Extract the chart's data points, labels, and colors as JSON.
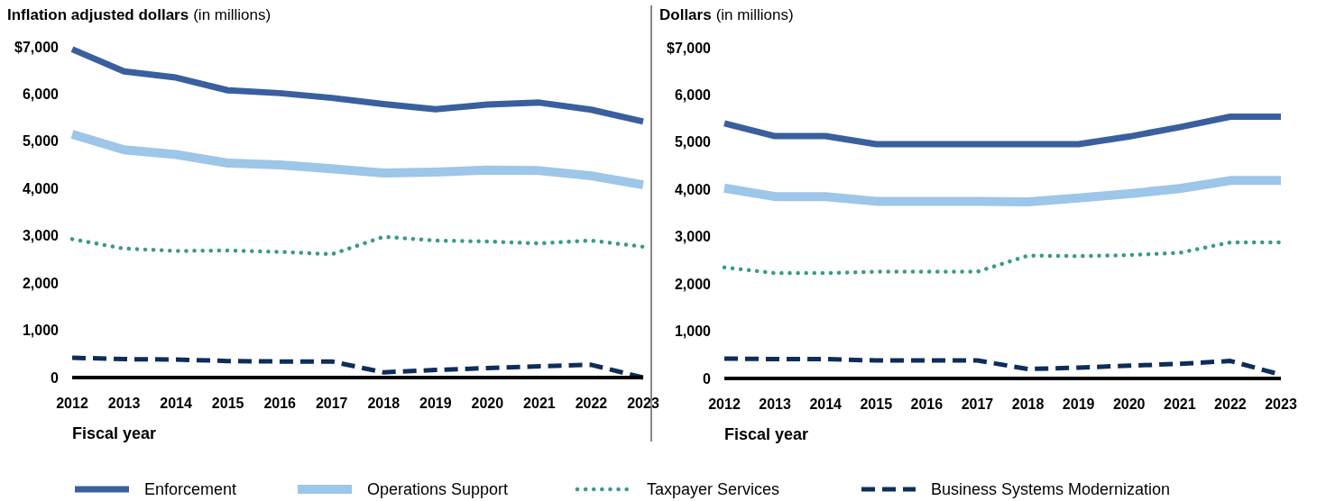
{
  "chart_data": [
    {
      "type": "line",
      "title": "Inflation adjusted dollars",
      "subtitle": "(in millions)",
      "xlabel": "Fiscal year",
      "categories": [
        "2012",
        "2013",
        "2014",
        "2015",
        "2016",
        "2017",
        "2018",
        "2019",
        "2020",
        "2021",
        "2022",
        "2023"
      ],
      "ylim": [
        0,
        7000
      ],
      "yticks": [
        {
          "value": 0,
          "label": "0"
        },
        {
          "value": 1000,
          "label": "1,000"
        },
        {
          "value": 2000,
          "label": "2,000"
        },
        {
          "value": 3000,
          "label": "3,000"
        },
        {
          "value": 4000,
          "label": "4,000"
        },
        {
          "value": 5000,
          "label": "5,000"
        },
        {
          "value": 6000,
          "label": "6,000"
        },
        {
          "value": 7000,
          "label": "$7,000"
        }
      ],
      "legend": "bottom",
      "series": [
        {
          "name": "Enforcement",
          "color": "#3a5f9f",
          "line_style": "solid",
          "values": [
            6950,
            6480,
            6350,
            6080,
            6020,
            5920,
            5790,
            5680,
            5780,
            5820,
            5670,
            5420
          ]
        },
        {
          "name": "Operations Support",
          "color": "#9dc6e8",
          "line_style": "solid",
          "values": [
            5150,
            4820,
            4720,
            4540,
            4500,
            4420,
            4330,
            4350,
            4390,
            4380,
            4270,
            4080
          ]
        },
        {
          "name": "Taxpayer Services",
          "color": "#3a9a8a",
          "line_style": "dotted",
          "values": [
            2930,
            2730,
            2680,
            2690,
            2660,
            2610,
            2980,
            2900,
            2880,
            2840,
            2900,
            2770
          ]
        },
        {
          "name": "Business Systems Modernization",
          "color": "#0d2d5a",
          "line_style": "dashed",
          "values": [
            420,
            390,
            380,
            350,
            340,
            340,
            110,
            160,
            200,
            240,
            270,
            0
          ]
        }
      ]
    },
    {
      "type": "line",
      "title": "Dollars",
      "subtitle": "(in millions)",
      "xlabel": "Fiscal year",
      "categories": [
        "2012",
        "2013",
        "2014",
        "2015",
        "2016",
        "2017",
        "2018",
        "2019",
        "2020",
        "2021",
        "2022",
        "2023"
      ],
      "ylim": [
        0,
        7000
      ],
      "yticks": [
        {
          "value": 0,
          "label": "0"
        },
        {
          "value": 1000,
          "label": "1,000"
        },
        {
          "value": 2000,
          "label": "2,000"
        },
        {
          "value": 3000,
          "label": "3,000"
        },
        {
          "value": 4000,
          "label": "4,000"
        },
        {
          "value": 5000,
          "label": "5,000"
        },
        {
          "value": 6000,
          "label": "6,000"
        },
        {
          "value": 7000,
          "label": "$7,000"
        }
      ],
      "series": [
        {
          "color": "#3a5f9f",
          "line_style": "solid",
          "values": [
            5400,
            5130,
            5130,
            4960,
            4960,
            4960,
            4960,
            4960,
            5120,
            5320,
            5540,
            5540
          ]
        },
        {
          "color": "#9dc6e8",
          "line_style": "solid",
          "values": [
            4030,
            3850,
            3850,
            3750,
            3750,
            3750,
            3740,
            3820,
            3910,
            4020,
            4190,
            4190
          ]
        },
        {
          "color": "#3a9a8a",
          "line_style": "dotted",
          "values": [
            2350,
            2230,
            2230,
            2260,
            2260,
            2260,
            2600,
            2590,
            2610,
            2660,
            2880,
            2880
          ]
        },
        {
          "color": "#0d2d5a",
          "line_style": "dashed",
          "values": [
            420,
            410,
            410,
            380,
            380,
            380,
            200,
            230,
            270,
            310,
            370,
            80
          ]
        }
      ]
    }
  ]
}
